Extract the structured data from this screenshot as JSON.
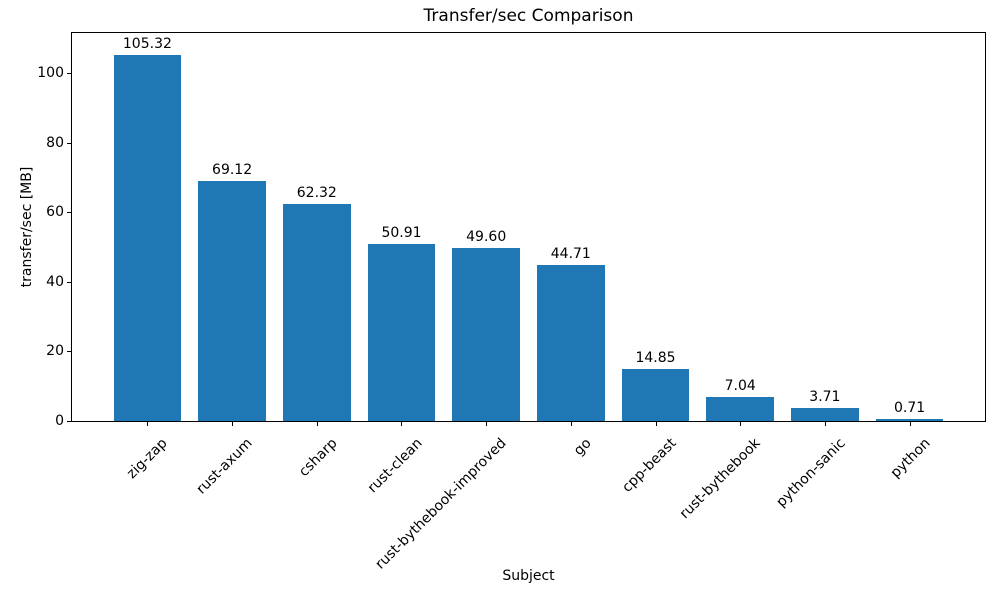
{
  "chart_data": {
    "type": "bar",
    "title": "Transfer/sec Comparison",
    "xlabel": "Subject",
    "ylabel": "transfer/sec [MB]",
    "categories": [
      "zig-zap",
      "rust-axum",
      "csharp",
      "rust-clean",
      "rust-bythebook-improved",
      "go",
      "cpp-beast",
      "rust-bythebook",
      "python-sanic",
      "python"
    ],
    "values": [
      105.32,
      69.12,
      62.32,
      50.91,
      49.6,
      44.71,
      14.85,
      7.04,
      3.71,
      0.71
    ],
    "value_labels": [
      "105.32",
      "69.12",
      "62.32",
      "50.91",
      "49.60",
      "44.71",
      "14.85",
      "7.04",
      "3.71",
      "0.71"
    ],
    "yticks": [
      0,
      20,
      40,
      60,
      80,
      100
    ],
    "ylim": [
      0,
      111.5
    ],
    "bar_color": "#1f77b4",
    "axis_color": "#000000",
    "background_color": "#ffffff",
    "grid": false,
    "legend_position": "none",
    "x_tick_rotation_deg": 45
  }
}
